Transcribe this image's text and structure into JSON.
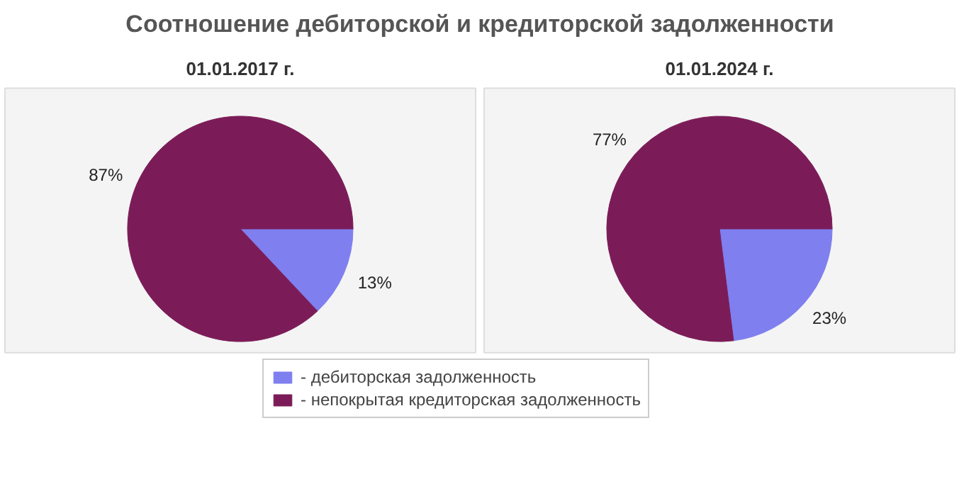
{
  "chart_data": [
    {
      "type": "pie",
      "title": "Соотношение дебиторской и кредиторской задолженности",
      "subtitle": "01.01.2017 г.",
      "categories": [
        "- дебиторская задолженность",
        "- непокрытая кредиторская задолженность"
      ],
      "values": [
        13,
        87
      ],
      "value_labels": [
        "13%",
        "87%"
      ],
      "colors": [
        "#7f7fef",
        "#7b1c58"
      ],
      "legend": "bottom"
    },
    {
      "type": "pie",
      "subtitle": "01.01.2024 г.",
      "values": [
        23,
        77
      ],
      "value_labels": [
        "23%",
        "77%"
      ],
      "colors": [
        "#7f7fef",
        "#7b1c58"
      ]
    }
  ]
}
